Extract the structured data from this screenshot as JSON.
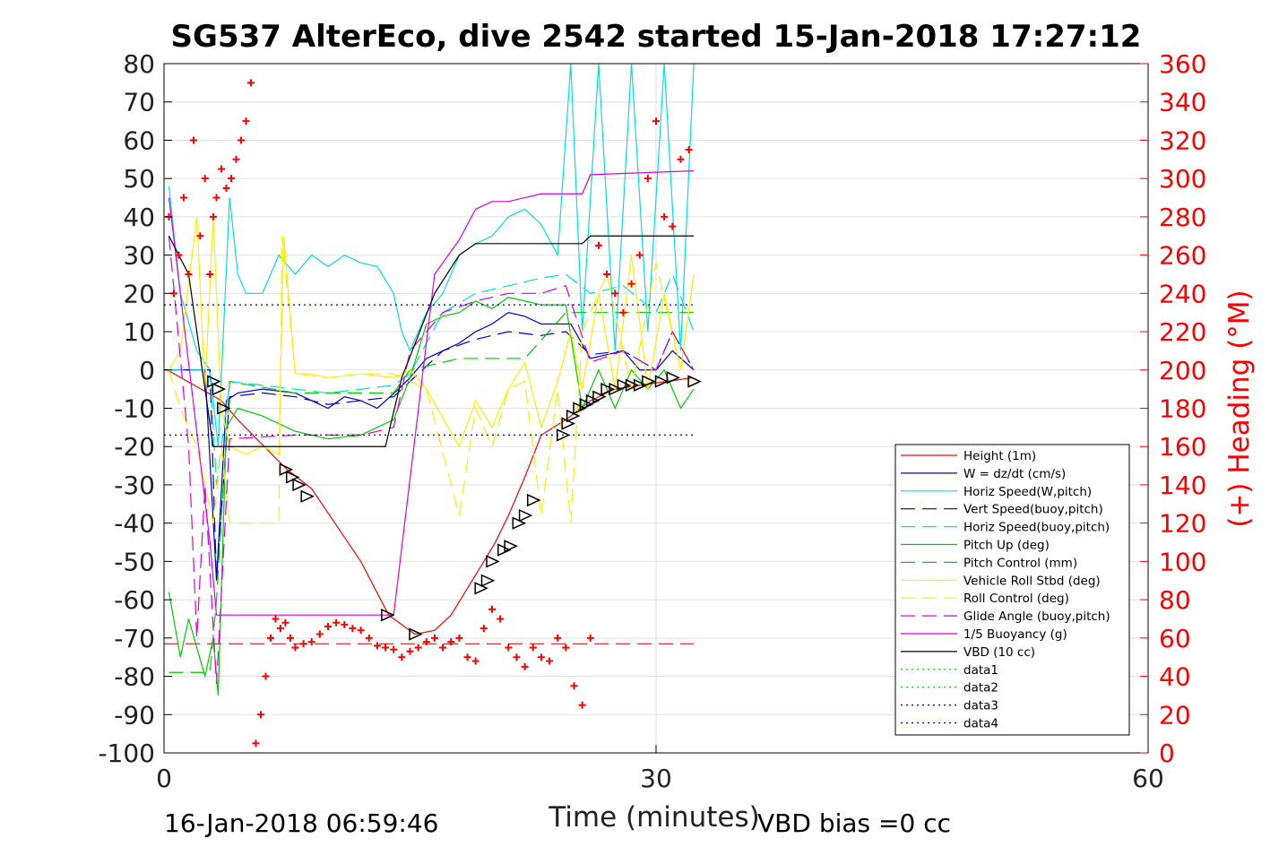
{
  "chart_data": {
    "type": "line",
    "title": "SG537 AlterEco, dive 2542 started 15-Jan-2018 17:27:12",
    "xlabel": "Time (minutes)",
    "ylabel_right": "(+) Heading (°M)",
    "xlim": [
      0,
      60
    ],
    "ylim": [
      -100,
      80
    ],
    "ylim_right": [
      0,
      360
    ],
    "x_ticks": [
      "0",
      "30",
      "60"
    ],
    "y_ticks": [
      "80",
      "70",
      "60",
      "50",
      "40",
      "30",
      "20",
      "10",
      "0",
      "-10",
      "-20",
      "-30",
      "-40",
      "-50",
      "-60",
      "-70",
      "-80",
      "-90",
      "-100"
    ],
    "y_ticks_right": [
      "360",
      "340",
      "320",
      "300",
      "280",
      "260",
      "240",
      "220",
      "200",
      "180",
      "160",
      "140",
      "120",
      "100",
      "80",
      "60",
      "40",
      "20",
      "0"
    ],
    "grid": true,
    "legend_position": "bottom-right",
    "footer_left": "16-Jan-2018 06:59:46",
    "footer_right": "VBD bias =0 cc",
    "series": [
      {
        "name": "Height (1m)",
        "color": "#ff0000",
        "style": "solid",
        "x": [
          0.2,
          3.5,
          4.5,
          7.5,
          9,
          12,
          13.7,
          15.3,
          16.5,
          17.5,
          18.5,
          19.5,
          20.2,
          21,
          22,
          23,
          24.5,
          26,
          27.5,
          29,
          32.3
        ],
        "y": [
          0,
          -8,
          -13,
          -26,
          -31,
          -50,
          -64,
          -69,
          -68,
          -64,
          -57,
          -50,
          -45,
          -38,
          -28,
          -17,
          -13,
          -8,
          -5,
          -4,
          -2
        ]
      },
      {
        "name": "W = dz/dt (cm/s)",
        "color": "#0000cc",
        "style": "solid",
        "x": [
          0,
          2.5,
          3.2,
          3.8,
          4.5,
          6,
          8,
          10,
          11,
          12,
          13,
          14.3,
          15,
          16,
          17,
          18,
          19,
          20,
          21,
          22,
          23,
          24,
          24.8,
          26,
          27,
          28,
          29,
          30,
          31,
          32.3
        ],
        "y": [
          0,
          0,
          -55,
          -8,
          -6,
          -5,
          -6,
          -10,
          -7,
          -8,
          -10,
          -5,
          -2,
          3,
          5,
          7,
          10,
          12,
          15,
          14,
          12,
          12,
          12,
          3,
          4,
          5,
          0,
          0,
          5,
          0
        ]
      },
      {
        "name": "Horiz Speed(W,pitch)",
        "color": "#00e0e0",
        "style": "solid",
        "x": [
          0.3,
          1,
          2,
          2.8,
          3.3,
          4,
          4.5,
          5,
          6,
          7,
          8,
          9,
          10,
          11,
          12,
          13,
          14,
          14.5,
          15,
          16,
          17,
          18,
          19,
          20,
          21,
          22,
          23,
          24,
          24.8,
          25.5,
          26.5,
          27.5,
          28.5,
          29.5,
          30.5,
          31.5,
          32.3
        ],
        "y": [
          48,
          20,
          5,
          0,
          -20,
          45,
          25,
          20,
          20,
          30,
          25,
          30,
          27,
          30,
          28,
          27,
          20,
          10,
          5,
          15,
          20,
          30,
          33,
          35,
          40,
          42,
          38,
          30,
          80,
          10,
          80,
          5,
          80,
          10,
          80,
          5,
          80
        ]
      },
      {
        "name": "Vert Speed(buoy,pitch)",
        "color": "#0000cc",
        "style": "dashed",
        "x": [
          0,
          2.8,
          3.2,
          4,
          6,
          8,
          10,
          12,
          14,
          15,
          17,
          19,
          21,
          23,
          24.5,
          26,
          28,
          30,
          31,
          32.3
        ],
        "y": [
          0,
          0,
          -55,
          -7,
          -6,
          -7,
          -9,
          -8,
          -7,
          -3,
          5,
          8,
          10,
          9,
          10,
          4,
          5,
          0,
          10,
          0
        ]
      },
      {
        "name": "Horiz Speed(buoy,pitch)",
        "color": "#00e0e0",
        "style": "dashed",
        "x": [
          0.3,
          2.8,
          3.2,
          4,
          6,
          8,
          10,
          12,
          14,
          15,
          17,
          19,
          21,
          23,
          24.5,
          26,
          28,
          30,
          31,
          32.3
        ],
        "y": [
          0,
          0,
          -30,
          -3,
          -4,
          -5,
          -6,
          -5,
          -4,
          -1,
          15,
          20,
          22,
          24,
          25,
          20,
          22,
          15,
          25,
          10
        ]
      },
      {
        "name": "Pitch Up (deg)",
        "color": "#00cc00",
        "style": "solid",
        "x": [
          0.3,
          1,
          1.5,
          2.5,
          3,
          3.3,
          3.8,
          4.5,
          6,
          8,
          10,
          12,
          14,
          15,
          16,
          17,
          18,
          19,
          20,
          21,
          22,
          23,
          24.5,
          25.5,
          26.5,
          27.5,
          28.5,
          29.5,
          30.5,
          31.5,
          32.3
        ],
        "y": [
          -58,
          -75,
          -65,
          -80,
          -70,
          -85,
          -15,
          -10,
          -12,
          -16,
          -18,
          -17,
          -13,
          -2,
          12,
          14,
          15,
          18,
          16,
          19,
          18,
          17,
          17,
          -10,
          0,
          -10,
          0,
          -5,
          0,
          -10,
          -5
        ]
      },
      {
        "name": "Pitch Control (mm)",
        "color": "#00cc00",
        "style": "dashed",
        "x": [
          0.3,
          2.8,
          3.2,
          4,
          8,
          14,
          15,
          18,
          22,
          24.5,
          32.3
        ],
        "y": [
          -79,
          -79,
          -60,
          -3,
          -6,
          -6,
          0,
          3,
          3,
          15,
          15
        ]
      },
      {
        "name": "Vehicle Roll Stbd (deg)",
        "color": "#ffee00",
        "style": "solid",
        "x": [
          0.3,
          1,
          2,
          2.5,
          3,
          3.5,
          4,
          5,
          6,
          7,
          7.3,
          8,
          9,
          10,
          12,
          14,
          15,
          16,
          18,
          19,
          20,
          21,
          22,
          23,
          24,
          24.8,
          25.5,
          26.5,
          27.5,
          28.5,
          29.5,
          30.5,
          31.5,
          32.3
        ],
        "y": [
          0,
          5,
          40,
          -5,
          40,
          -10,
          -20,
          -22,
          -20,
          -22,
          35,
          -1,
          -1,
          -2,
          -1,
          -2,
          0,
          -5,
          -20,
          -8,
          -15,
          -5,
          2,
          -15,
          -3,
          10,
          -5,
          20,
          -5,
          30,
          -5,
          20,
          0,
          25
        ]
      },
      {
        "name": "Roll Control (deg)",
        "color": "#ffee00",
        "style": "dashed",
        "x": [
          0.3,
          1,
          2,
          3,
          3.5,
          4,
          5,
          7,
          7.2,
          8,
          10,
          12,
          14,
          16,
          18,
          19,
          20,
          21,
          22,
          23,
          24,
          24.8,
          25.5,
          27,
          28.5,
          30,
          31.5,
          32.3
        ],
        "y": [
          0,
          -10,
          -20,
          -40,
          -20,
          -40,
          -40,
          -40,
          35,
          -1,
          -2,
          -1,
          -1,
          -5,
          -38,
          -10,
          -20,
          -5,
          -3,
          -38,
          -5,
          -40,
          10,
          25,
          -5,
          28,
          0,
          25
        ]
      },
      {
        "name": "Glide Angle (buoy,pitch)",
        "color": "#dd00dd",
        "style": "dashed",
        "x": [
          0.3,
          1.5,
          2,
          2.5,
          3.2,
          4,
          8,
          12,
          14,
          15,
          17,
          19,
          21,
          23,
          24.5,
          26,
          28,
          30,
          31,
          32.3
        ],
        "y": [
          35,
          -20,
          -70,
          -30,
          -82,
          -18,
          -17,
          -17,
          -15,
          5,
          15,
          18,
          20,
          20,
          22,
          2,
          5,
          0,
          10,
          0
        ]
      },
      {
        "name": "1/5 Buoyancy (g)",
        "color": "#dd00dd",
        "style": "solid",
        "x": [
          0.3,
          2.8,
          3.2,
          14,
          16.5,
          18,
          19,
          20,
          21,
          22,
          23,
          25.5,
          26,
          32.3
        ],
        "y": [
          45,
          -45,
          -64,
          -64,
          25,
          34,
          42,
          44,
          44,
          45,
          46,
          46,
          51,
          52
        ]
      },
      {
        "name": "VBD (10 cc)",
        "color": "#000000",
        "style": "solid",
        "x": [
          0.3,
          1.5,
          3,
          3.2,
          8,
          13.5,
          14.5,
          16.5,
          18,
          19,
          20,
          25.5,
          26,
          32.3
        ],
        "y": [
          35,
          25,
          -20,
          -20,
          -20,
          -20,
          -2,
          20,
          30,
          33,
          33,
          33,
          35,
          35
        ]
      },
      {
        "name": "data1",
        "color": "#00cc00",
        "style": "dotted",
        "x": [],
        "y": []
      },
      {
        "name": "data2",
        "color": "#00cc00",
        "style": "dotted",
        "x": [],
        "y": []
      },
      {
        "name": "data3",
        "color": "#000099",
        "style": "dotted",
        "x": [
          0,
          32.3
        ],
        "y": [
          17,
          17
        ]
      },
      {
        "name": "data4",
        "color": "#000099",
        "style": "dotted",
        "x": [
          0,
          32.3
        ],
        "y": [
          -17,
          -17
        ]
      }
    ],
    "reference_lines": [
      {
        "color": "#cc0000",
        "style": "dashed",
        "x": [
          0,
          32.3
        ],
        "y": [
          -71.5,
          -71.5
        ]
      }
    ],
    "heading_points": {
      "marker": "+",
      "color": "#ff0000",
      "axis": "right",
      "x": [
        0.3,
        0.6,
        0.9,
        1.2,
        1.5,
        1.8,
        2.2,
        2.5,
        2.8,
        3.0,
        3.2,
        3.5,
        3.8,
        4.1,
        4.4,
        4.7,
        5.0,
        5.3,
        5.6,
        5.9,
        6.2,
        6.5,
        6.8,
        7.1,
        7.4,
        7.7,
        8.0,
        8.5,
        9.0,
        9.5,
        10,
        10.5,
        11,
        11.5,
        12,
        12.5,
        13,
        13.5,
        14,
        14.5,
        15,
        15.5,
        16,
        16.5,
        17,
        17.5,
        18,
        18.5,
        19,
        19.5,
        20,
        20.5,
        21,
        21.5,
        22,
        22.5,
        23,
        23.5,
        24,
        24.5,
        25,
        25.5,
        26,
        26.5,
        27,
        27.5,
        28,
        28.5,
        29,
        29.5,
        30,
        30.5,
        31,
        31.5,
        32
      ],
      "y": [
        280,
        240,
        260,
        290,
        250,
        320,
        270,
        300,
        250,
        280,
        290,
        305,
        295,
        300,
        310,
        320,
        330,
        350,
        5,
        20,
        40,
        60,
        70,
        65,
        68,
        60,
        55,
        57,
        58,
        62,
        66,
        68,
        67,
        65,
        64,
        60,
        56,
        55,
        54,
        50,
        53,
        55,
        58,
        60,
        55,
        58,
        60,
        50,
        48,
        65,
        75,
        70,
        55,
        50,
        45,
        55,
        50,
        48,
        60,
        55,
        35,
        25,
        60,
        265,
        250,
        240,
        230,
        245,
        260,
        300,
        330,
        280,
        275,
        310,
        315
      ]
    },
    "triangle_markers": {
      "color": "#000000",
      "x": [
        3.0,
        3.3,
        3.6,
        7.4,
        7.8,
        8.2,
        8.7,
        13.6,
        15.3,
        19.3,
        19.7,
        20.0,
        20.7,
        21.1,
        21.6,
        22.0,
        22.5,
        24.3,
        24.6,
        24.9,
        25.3,
        25.7,
        26.1,
        26.5,
        27.0,
        27.5,
        28.0,
        28.5,
        29.0,
        29.5,
        30.3,
        31.0,
        32.3
      ],
      "y": [
        -3,
        -5,
        -10,
        -26,
        -28,
        -30,
        -33,
        -64,
        -69,
        -57,
        -55,
        -50,
        -47,
        -46,
        -40,
        -38,
        -34,
        -17,
        -14,
        -12,
        -10,
        -9,
        -8,
        -7,
        -5,
        -5,
        -4,
        -4,
        -4,
        -3,
        -3,
        -2,
        -3
      ]
    }
  }
}
